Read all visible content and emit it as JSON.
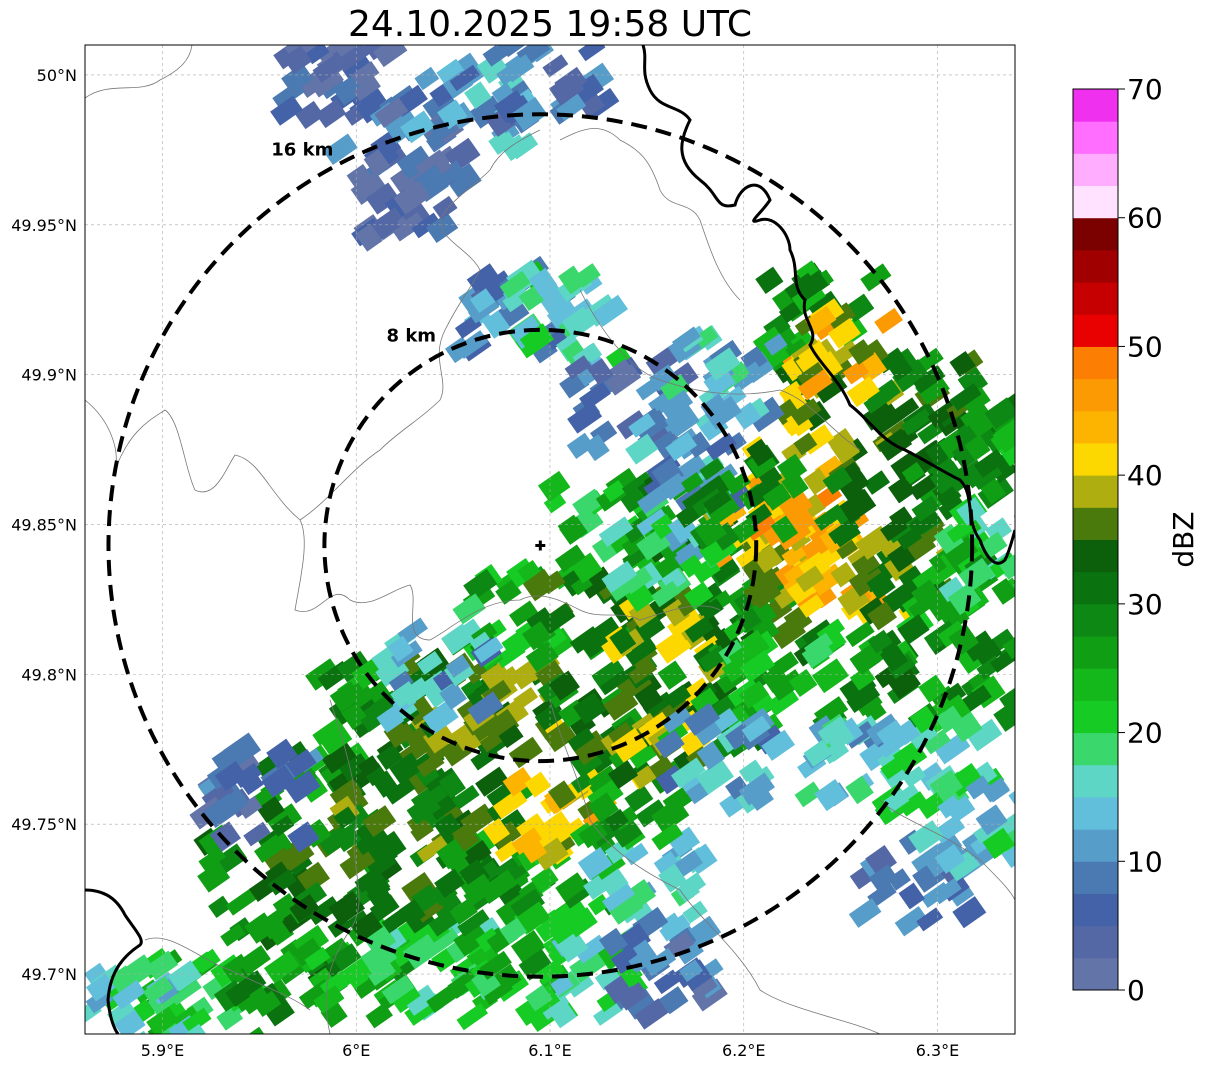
{
  "title": "24.10.2025 19:58 UTC",
  "map": {
    "lon_range": [
      5.86,
      6.34
    ],
    "lat_range": [
      49.68,
      50.01
    ],
    "lat_ticks": [
      {
        "value": 50.0,
        "label": "50°N"
      },
      {
        "value": 49.95,
        "label": "49.95°N"
      },
      {
        "value": 49.9,
        "label": "49.9°N"
      },
      {
        "value": 49.85,
        "label": "49.85°N"
      },
      {
        "value": 49.8,
        "label": "49.8°N"
      },
      {
        "value": 49.75,
        "label": "49.75°N"
      },
      {
        "value": 49.7,
        "label": "49.7°N"
      }
    ],
    "lon_ticks": [
      {
        "value": 5.9,
        "label": "5.9°E"
      },
      {
        "value": 6.0,
        "label": "6°E"
      },
      {
        "value": 6.1,
        "label": "6.1°E"
      },
      {
        "value": 6.2,
        "label": "6.2°E"
      },
      {
        "value": 6.3,
        "label": "6.3°E"
      }
    ],
    "radar_center": {
      "lon": 6.095,
      "lat": 49.843
    },
    "range_rings": [
      {
        "radius_km": 8,
        "label": "8 km"
      },
      {
        "radius_km": 16,
        "label": "16 km"
      }
    ],
    "grid": true
  },
  "colorbar": {
    "unit": "dBZ",
    "min": 0,
    "max": 70,
    "tick_labels": [
      "0",
      "10",
      "20",
      "30",
      "40",
      "50",
      "60",
      "70"
    ],
    "colors": [
      "#6374a8",
      "#5468a6",
      "#4462a8",
      "#4b79b1",
      "#579dc9",
      "#62bfdb",
      "#5ed6c6",
      "#3ad76c",
      "#15cb24",
      "#14b81b",
      "#109f14",
      "#0e8814",
      "#0a730f",
      "#0c5f0b",
      "#4a7a0b",
      "#aeae10",
      "#fdd800",
      "#fcb400",
      "#fc9a04",
      "#fc7e02",
      "#e90000",
      "#c60000",
      "#a00000",
      "#7b0000",
      "#ffe2ff",
      "#ffaeff",
      "#ff6eff",
      "#ef30ef"
    ]
  },
  "echo_cells": [
    {
      "lon": 5.92,
      "lat": 49.69,
      "dbz": 22
    },
    {
      "lon": 5.96,
      "lat": 49.7,
      "dbz": 28
    },
    {
      "lon": 6.0,
      "lat": 49.7,
      "dbz": 25
    },
    {
      "lon": 6.04,
      "lat": 49.7,
      "dbz": 20
    },
    {
      "lon": 6.08,
      "lat": 49.7,
      "dbz": 24
    },
    {
      "lon": 6.12,
      "lat": 49.7,
      "dbz": 18
    },
    {
      "lon": 5.95,
      "lat": 49.73,
      "dbz": 30
    },
    {
      "lon": 5.99,
      "lat": 49.73,
      "dbz": 32
    },
    {
      "lon": 6.03,
      "lat": 49.73,
      "dbz": 33
    },
    {
      "lon": 6.07,
      "lat": 49.73,
      "dbz": 29
    },
    {
      "lon": 6.11,
      "lat": 49.73,
      "dbz": 24
    },
    {
      "lon": 6.15,
      "lat": 49.73,
      "dbz": 14
    },
    {
      "lon": 5.98,
      "lat": 49.76,
      "dbz": 29
    },
    {
      "lon": 6.02,
      "lat": 49.76,
      "dbz": 33
    },
    {
      "lon": 6.06,
      "lat": 49.76,
      "dbz": 32
    },
    {
      "lon": 6.1,
      "lat": 49.755,
      "dbz": 40
    },
    {
      "lon": 6.14,
      "lat": 49.76,
      "dbz": 27
    },
    {
      "lon": 6.01,
      "lat": 49.79,
      "dbz": 27
    },
    {
      "lon": 6.05,
      "lat": 49.79,
      "dbz": 34
    },
    {
      "lon": 6.09,
      "lat": 49.79,
      "dbz": 35
    },
    {
      "lon": 6.13,
      "lat": 49.79,
      "dbz": 31
    },
    {
      "lon": 6.16,
      "lat": 49.78,
      "dbz": 38
    },
    {
      "lon": 6.19,
      "lat": 49.79,
      "dbz": 27
    },
    {
      "lon": 6.08,
      "lat": 49.82,
      "dbz": 24
    },
    {
      "lon": 6.12,
      "lat": 49.82,
      "dbz": 31
    },
    {
      "lon": 6.16,
      "lat": 49.815,
      "dbz": 37
    },
    {
      "lon": 6.2,
      "lat": 49.82,
      "dbz": 30
    },
    {
      "lon": 6.13,
      "lat": 49.85,
      "dbz": 22
    },
    {
      "lon": 6.17,
      "lat": 49.85,
      "dbz": 30
    },
    {
      "lon": 6.21,
      "lat": 49.84,
      "dbz": 41
    },
    {
      "lon": 6.24,
      "lat": 49.835,
      "dbz": 42
    },
    {
      "lon": 6.28,
      "lat": 49.83,
      "dbz": 36
    },
    {
      "lon": 6.31,
      "lat": 49.83,
      "dbz": 26
    },
    {
      "lon": 6.23,
      "lat": 49.86,
      "dbz": 43
    },
    {
      "lon": 6.27,
      "lat": 49.86,
      "dbz": 33
    },
    {
      "lon": 6.31,
      "lat": 49.87,
      "dbz": 30
    },
    {
      "lon": 6.25,
      "lat": 49.89,
      "dbz": 37
    },
    {
      "lon": 6.29,
      "lat": 49.89,
      "dbz": 31
    },
    {
      "lon": 6.24,
      "lat": 49.92,
      "dbz": 28
    },
    {
      "lon": 6.25,
      "lat": 49.906,
      "dbz": 41
    },
    {
      "lon": 6.32,
      "lat": 49.8,
      "dbz": 27
    },
    {
      "lon": 6.26,
      "lat": 49.8,
      "dbz": 29
    },
    {
      "lon": 6.22,
      "lat": 49.8,
      "dbz": 22
    },
    {
      "lon": 6.26,
      "lat": 49.77,
      "dbz": 14
    },
    {
      "lon": 6.3,
      "lat": 49.77,
      "dbz": 18
    },
    {
      "lon": 6.29,
      "lat": 49.73,
      "dbz": 8
    },
    {
      "lon": 6.32,
      "lat": 49.75,
      "dbz": 15
    },
    {
      "lon": 6.19,
      "lat": 49.77,
      "dbz": 12
    },
    {
      "lon": 6.02,
      "lat": 49.98,
      "dbz": 6
    },
    {
      "lon": 6.06,
      "lat": 49.99,
      "dbz": 12
    },
    {
      "lon": 6.1,
      "lat": 50.0,
      "dbz": 8
    },
    {
      "lon": 5.99,
      "lat": 50.0,
      "dbz": 5
    },
    {
      "lon": 6.03,
      "lat": 49.96,
      "dbz": 4
    },
    {
      "lon": 6.08,
      "lat": 49.92,
      "dbz": 9
    },
    {
      "lon": 6.11,
      "lat": 49.92,
      "dbz": 18
    },
    {
      "lon": 6.14,
      "lat": 49.89,
      "dbz": 6
    },
    {
      "lon": 6.17,
      "lat": 49.87,
      "dbz": 12
    },
    {
      "lon": 6.16,
      "lat": 49.84,
      "dbz": 16
    },
    {
      "lon": 5.95,
      "lat": 49.76,
      "dbz": 6
    },
    {
      "lon": 6.04,
      "lat": 49.8,
      "dbz": 12
    },
    {
      "lon": 5.89,
      "lat": 49.69,
      "dbz": 16
    },
    {
      "lon": 6.16,
      "lat": 49.7,
      "dbz": 6
    },
    {
      "lon": 6.33,
      "lat": 49.88,
      "dbz": 26
    },
    {
      "lon": 6.33,
      "lat": 49.84,
      "dbz": 20
    },
    {
      "lon": 6.2,
      "lat": 49.86,
      "dbz": 28
    },
    {
      "lon": 6.19,
      "lat": 49.9,
      "dbz": 14
    }
  ]
}
